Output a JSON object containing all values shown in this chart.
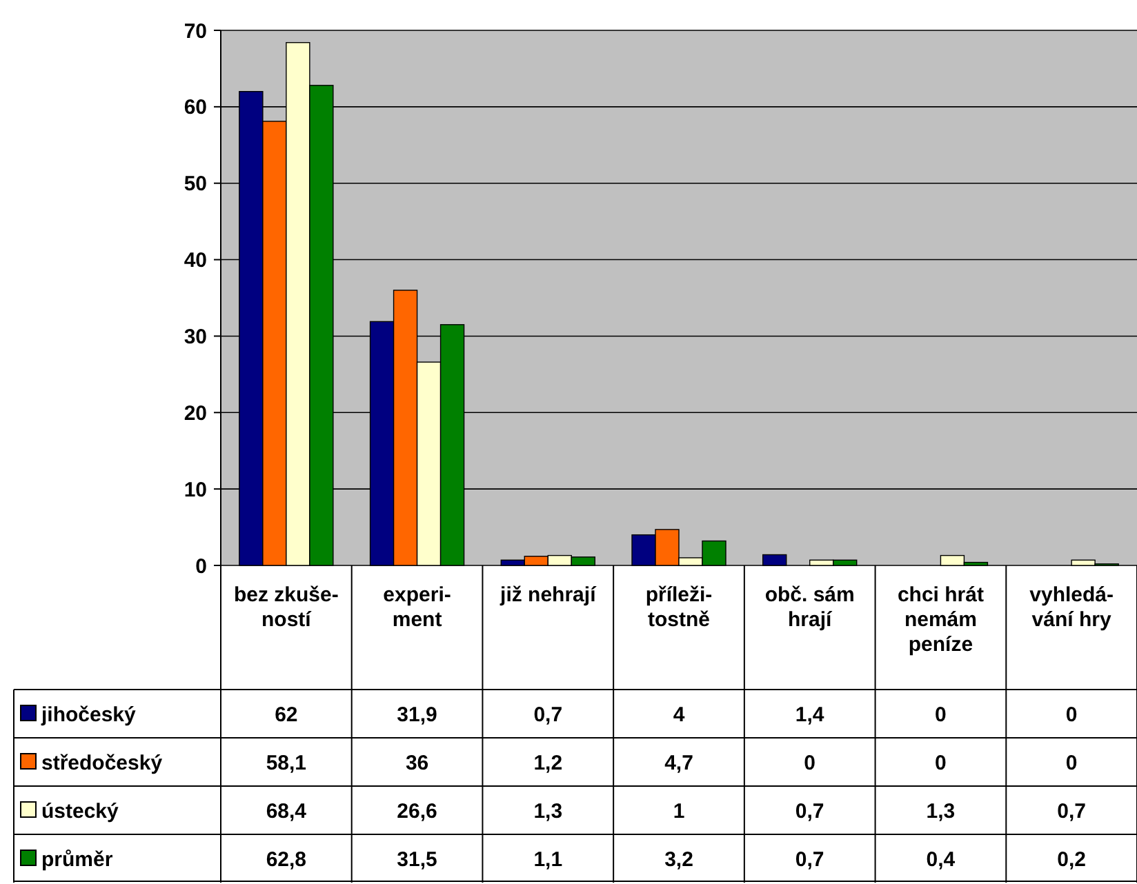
{
  "chart_data": {
    "type": "bar",
    "categories": [
      "bez zkuše-\nností",
      "experi-\nment",
      "již nehrají",
      "příleži-\ntostně",
      "obč. sám\nhrají",
      "chci hrát\nnemám\npeníze",
      "vyhledá-\nvání hry"
    ],
    "series": [
      {
        "name": "jihočeský",
        "color": "#000080",
        "values": [
          62,
          31.9,
          0.7,
          4,
          1.4,
          0,
          0
        ],
        "value_labels": [
          "62",
          "31,9",
          "0,7",
          "4",
          "1,4",
          "0",
          "0"
        ]
      },
      {
        "name": "středočeský",
        "color": "#ff6600",
        "values": [
          58.1,
          36,
          1.2,
          4.7,
          0,
          0,
          0
        ],
        "value_labels": [
          "58,1",
          "36",
          "1,2",
          "4,7",
          "0",
          "0",
          "0"
        ]
      },
      {
        "name": "ústecký",
        "color": "#ffffcc",
        "values": [
          68.4,
          26.6,
          1.3,
          1,
          0.7,
          1.3,
          0.7
        ],
        "value_labels": [
          "68,4",
          "26,6",
          "1,3",
          "1",
          "0,7",
          "1,3",
          "0,7"
        ]
      },
      {
        "name": "průměr",
        "color": "#008000",
        "values": [
          62.8,
          31.5,
          1.1,
          3.2,
          0.7,
          0.4,
          0.2
        ],
        "value_labels": [
          "62,8",
          "31,5",
          "1,1",
          "3,2",
          "0,7",
          "0,4",
          "0,2"
        ]
      }
    ],
    "ylim": [
      0,
      70
    ],
    "yticks": [
      0,
      10,
      20,
      30,
      40,
      50,
      60,
      70
    ],
    "grid": "y",
    "legend": "bottom"
  }
}
